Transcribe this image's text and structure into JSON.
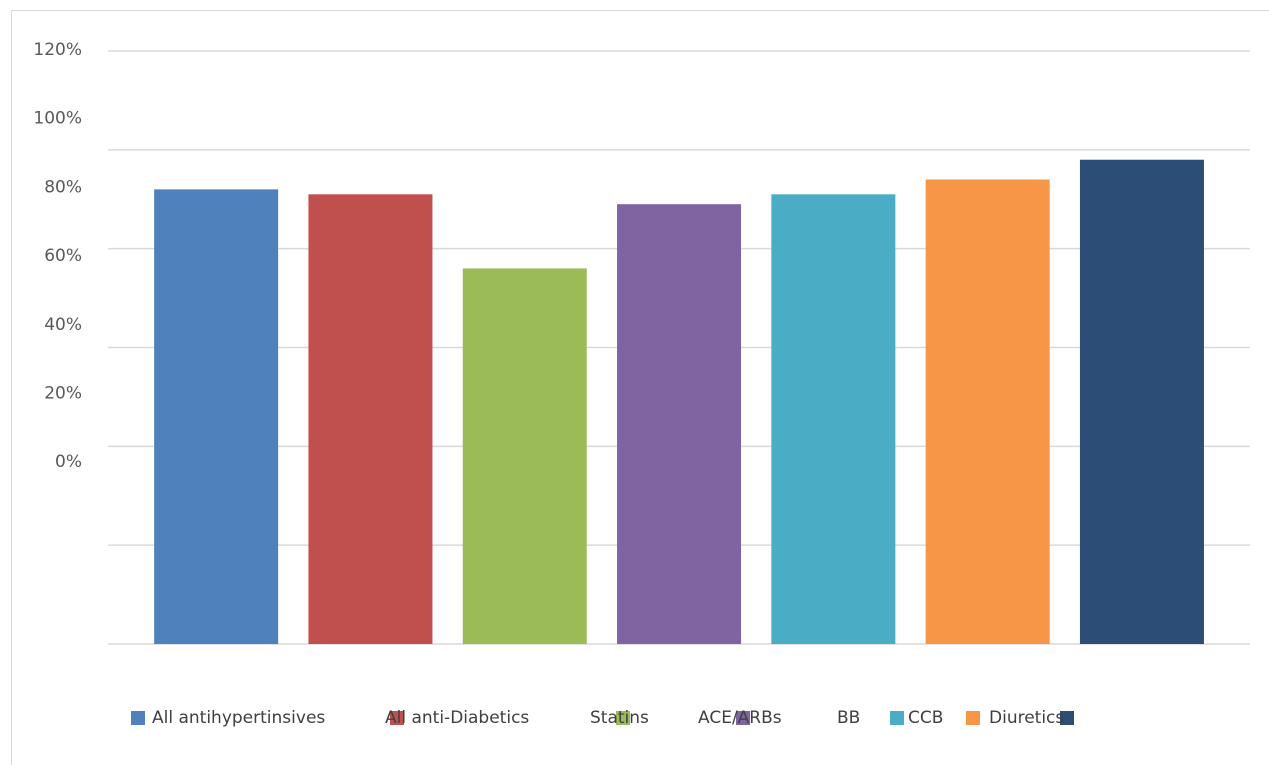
{
  "chart_data": {
    "type": "bar",
    "categories": [
      "All antihypertinsives",
      "All anti-Diabetics",
      "Statins",
      "ACE/ARBs",
      "BB",
      "CCB",
      "Diuretics"
    ],
    "values": [
      92,
      91,
      76,
      89,
      91,
      94,
      98
    ],
    "colors": [
      "#4f81bd",
      "#c0504d",
      "#9bbb59",
      "#8064a2",
      "#4bacc6",
      "#f79646",
      "#2c4d75"
    ],
    "ylim": [
      0,
      120
    ],
    "yticks": [
      {
        "value": 120,
        "label": "120%"
      },
      {
        "value": 100,
        "label": "100%"
      },
      {
        "value": 80,
        "label": "80%"
      },
      {
        "value": 60,
        "label": "60%"
      },
      {
        "value": 40,
        "label": "40%"
      },
      {
        "value": 20,
        "label": "20%"
      },
      {
        "value": 0,
        "label": "0%"
      }
    ],
    "grid": true
  }
}
